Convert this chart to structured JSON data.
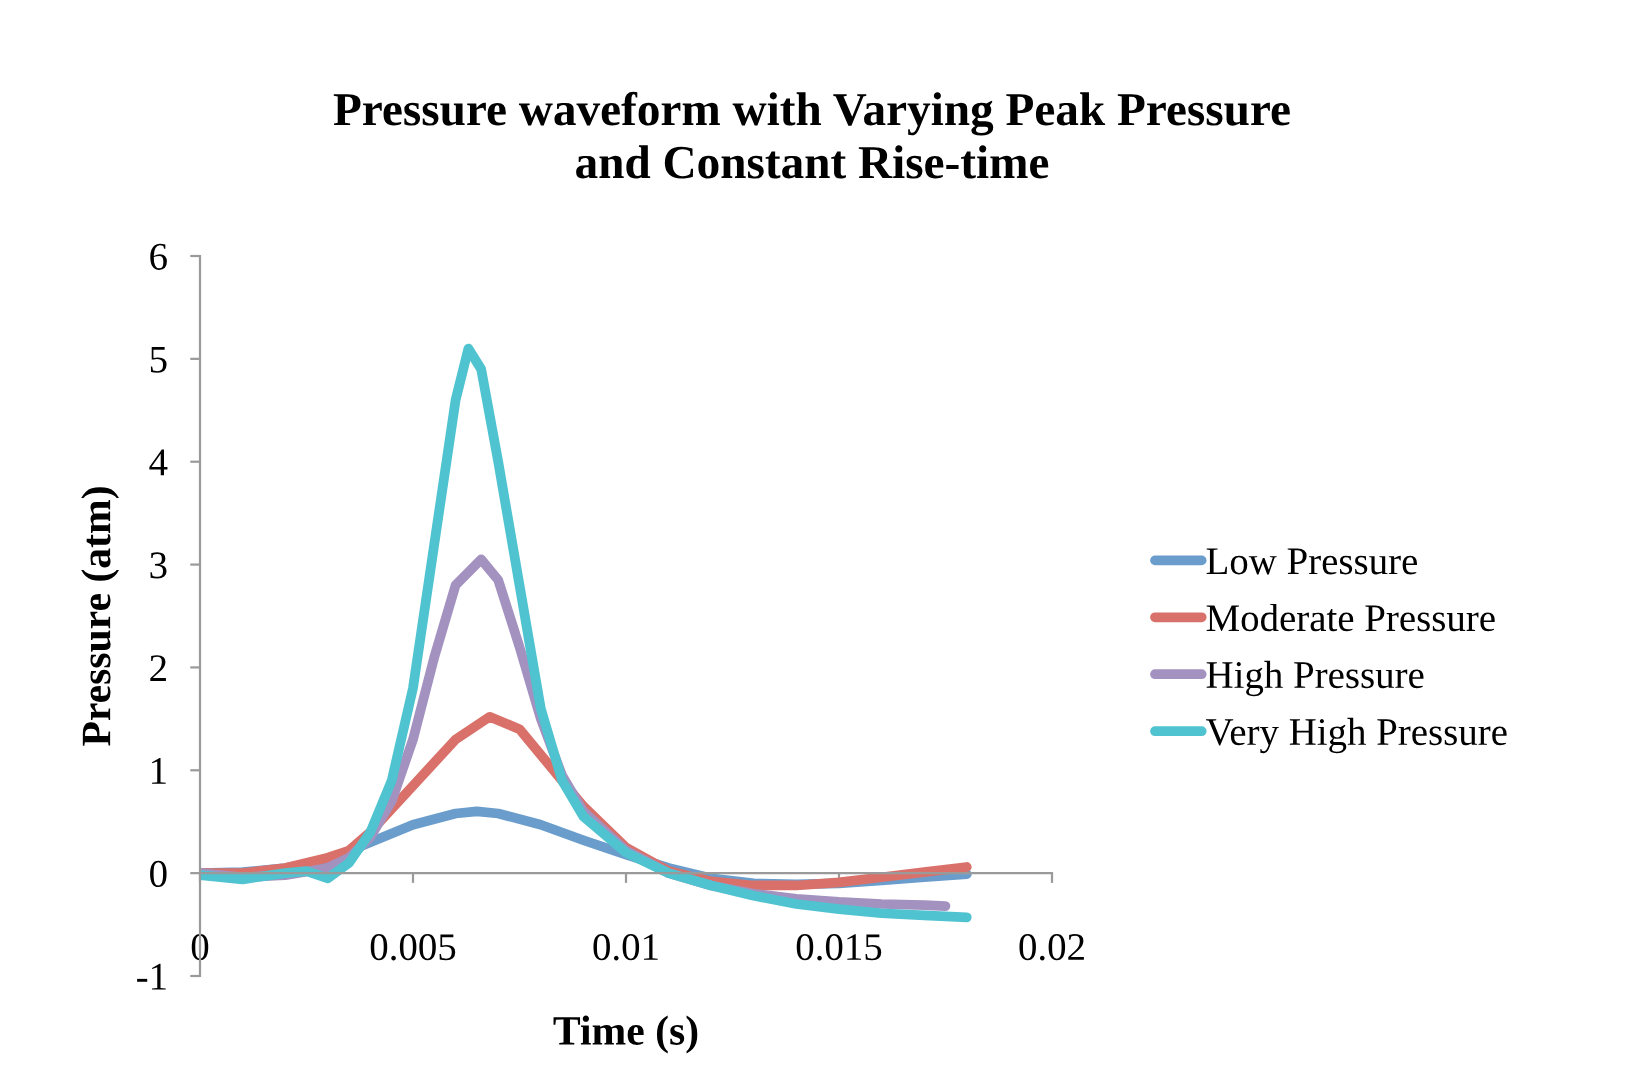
{
  "chart_data": {
    "type": "line",
    "title": "Pressure waveform with Varying Peak Pressure\nand Constant Rise-time",
    "xlabel": "Time (s)",
    "ylabel": "Pressure (atm)",
    "xlim": [
      0,
      0.02
    ],
    "xticks": [
      0,
      0.005,
      0.01,
      0.015,
      0.02
    ],
    "ylim": [
      -1,
      6
    ],
    "yticks": [
      -1,
      0,
      1,
      2,
      3,
      4,
      5,
      6
    ],
    "grid": false,
    "legend": "right",
    "marker": "none",
    "line_style": "solid",
    "series": [
      {
        "name": "Low Pressure",
        "color": "#6a9dcb",
        "x": [
          0,
          0.001,
          0.002,
          0.003,
          0.004,
          0.005,
          0.006,
          0.0065,
          0.007,
          0.008,
          0.009,
          0.01,
          0.011,
          0.012,
          0.013,
          0.014,
          0.015,
          0.016,
          0.017,
          0.018
        ],
        "values": [
          0,
          0.01,
          0.05,
          0.13,
          0.3,
          0.47,
          0.58,
          0.6,
          0.58,
          0.47,
          0.32,
          0.18,
          0.05,
          -0.05,
          -0.1,
          -0.11,
          -0.1,
          -0.07,
          -0.04,
          -0.01
        ]
      },
      {
        "name": "Moderate Pressure",
        "color": "#d9716a",
        "x": [
          0,
          0.001,
          0.002,
          0.003,
          0.0035,
          0.004,
          0.005,
          0.006,
          0.0068,
          0.0075,
          0.008,
          0.009,
          0.01,
          0.011,
          0.012,
          0.013,
          0.014,
          0.015,
          0.016,
          0.017,
          0.018
        ],
        "values": [
          0,
          0,
          0.05,
          0.15,
          0.22,
          0.4,
          0.85,
          1.3,
          1.52,
          1.4,
          1.15,
          0.65,
          0.25,
          0.02,
          -0.08,
          -0.12,
          -0.12,
          -0.09,
          -0.04,
          0.01,
          0.06
        ]
      },
      {
        "name": "High Pressure",
        "color": "#a392c0",
        "x": [
          0,
          0.001,
          0.002,
          0.003,
          0.0035,
          0.004,
          0.0045,
          0.005,
          0.0055,
          0.006,
          0.0066,
          0.007,
          0.0075,
          0.008,
          0.0085,
          0.009,
          0.01,
          0.011,
          0.012,
          0.013,
          0.014,
          0.015,
          0.016,
          0.017,
          0.0175
        ],
        "values": [
          0,
          -0.04,
          -0.02,
          0.05,
          0.15,
          0.35,
          0.7,
          1.3,
          2.1,
          2.8,
          3.05,
          2.85,
          2.2,
          1.5,
          0.95,
          0.6,
          0.22,
          0,
          -0.12,
          -0.2,
          -0.25,
          -0.28,
          -0.3,
          -0.31,
          -0.32
        ]
      },
      {
        "name": "Very High Pressure",
        "color": "#4fc3cf",
        "x": [
          0,
          0.001,
          0.002,
          0.0025,
          0.003,
          0.0035,
          0.004,
          0.0045,
          0.005,
          0.0055,
          0.006,
          0.0063,
          0.0066,
          0.007,
          0.0075,
          0.008,
          0.0085,
          0.009,
          0.01,
          0.011,
          0.012,
          0.013,
          0.014,
          0.015,
          0.016,
          0.017,
          0.018
        ],
        "values": [
          -0.02,
          -0.06,
          0,
          0.02,
          -0.05,
          0.1,
          0.4,
          0.9,
          1.8,
          3.2,
          4.6,
          5.1,
          4.9,
          4.0,
          2.8,
          1.6,
          0.9,
          0.55,
          0.2,
          0,
          -0.12,
          -0.22,
          -0.3,
          -0.35,
          -0.39,
          -0.41,
          -0.43
        ]
      }
    ]
  }
}
